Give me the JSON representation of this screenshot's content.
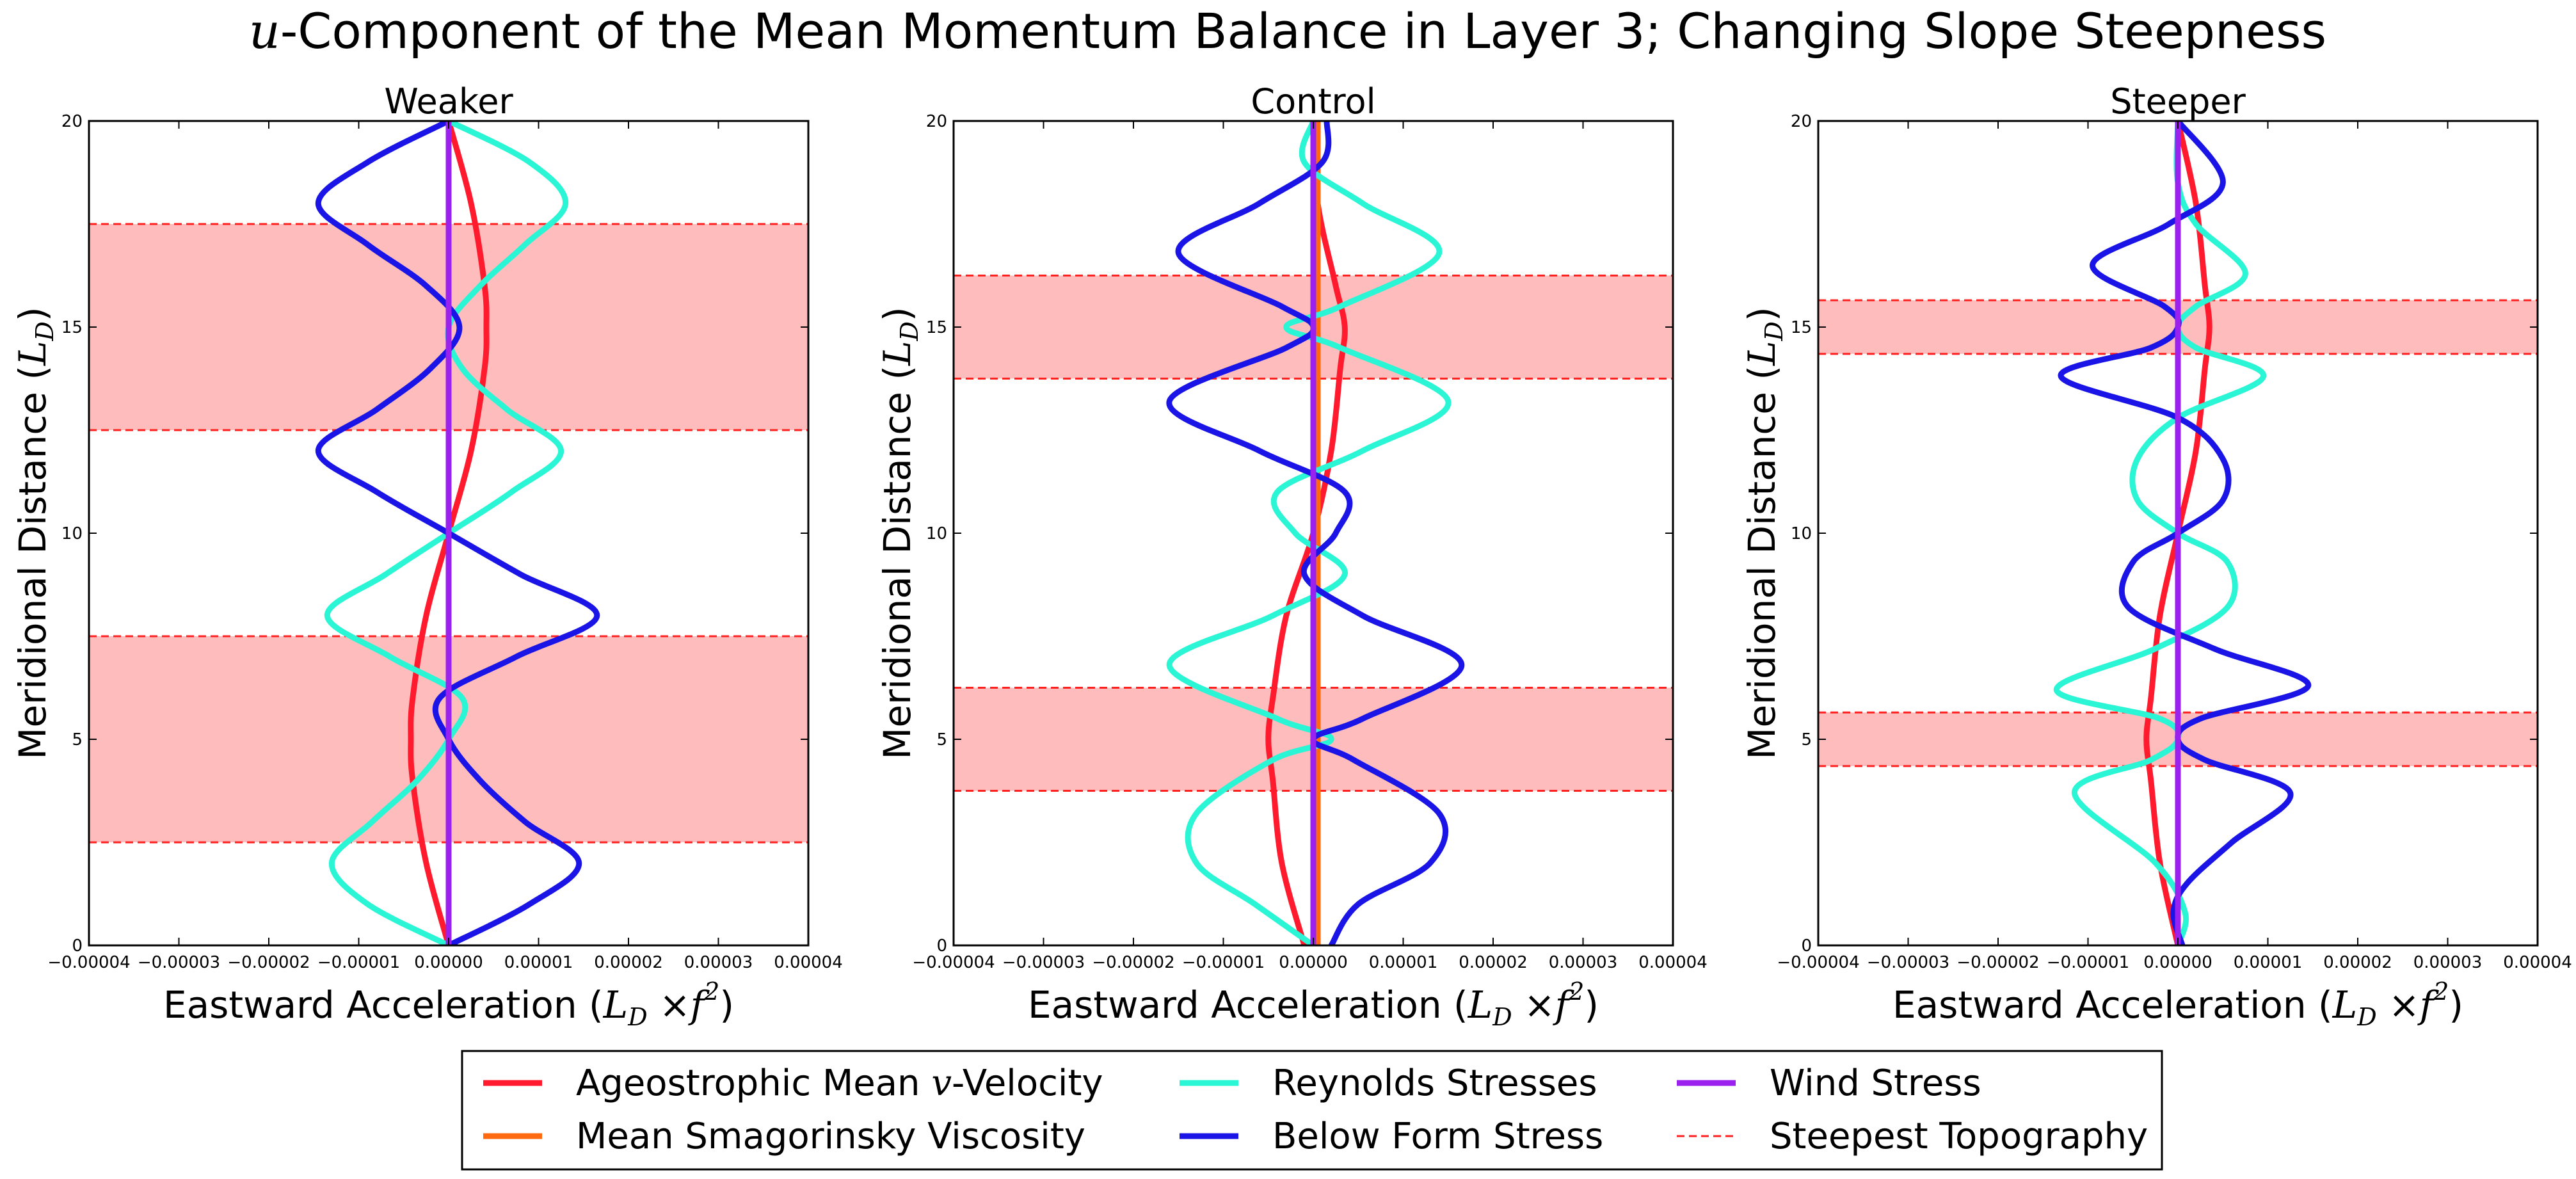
{
  "figure": {
    "title_math": "u",
    "title_rest": "-Component of the Mean Momentum Balance in Layer 3; Changing Slope Steepness",
    "xlabel_text": "Eastward Acceleration (",
    "xlabel_math": "L",
    "xlabel_sub": "D",
    "xlabel_times": " ×",
    "xlabel_f": "f",
    "xlabel_sup": "2",
    "xlabel_close": ")",
    "ylabel_text": "Meridional Distance (",
    "ylabel_math": "L",
    "ylabel_sub": "D",
    "ylabel_close": ")"
  },
  "legend": {
    "placement": "lower-center",
    "items": [
      {
        "key": "ageo",
        "label_pre": "Ageostrophic Mean ",
        "label_math": "v",
        "label_post": "-Velocity",
        "color": "#ff1a2e",
        "style": "solid"
      },
      {
        "key": "smag",
        "label_pre": "Mean Smagorinsky Viscosity",
        "label_math": "",
        "label_post": "",
        "color": "#ff6a10",
        "style": "solid"
      },
      {
        "key": "reyn",
        "label_pre": "Reynolds Stresses",
        "label_math": "",
        "label_post": "",
        "color": "#2af5d5",
        "style": "solid"
      },
      {
        "key": "form",
        "label_pre": "Below Form Stress",
        "label_math": "",
        "label_post": "",
        "color": "#1a14e6",
        "style": "solid"
      },
      {
        "key": "wind",
        "label_pre": "Wind Stress",
        "label_math": "",
        "label_post": "",
        "color": "#9b22ee",
        "style": "solid"
      },
      {
        "key": "topo",
        "label_pre": "Steepest Topography",
        "label_math": "",
        "label_post": "",
        "color": "#ff2020",
        "style": "dashed"
      }
    ]
  },
  "chart_data": [
    {
      "type": "line",
      "title": "Weaker",
      "xlim": [
        -4e-05,
        4e-05
      ],
      "ylim": [
        0,
        20
      ],
      "xticks": [
        "−0.00004",
        "−0.00003",
        "−0.00002",
        "−0.00001",
        "0.00000",
        "0.00001",
        "0.00002",
        "0.00003",
        "0.00004"
      ],
      "yticks": [
        "0",
        "5",
        "10",
        "15",
        "20"
      ],
      "shaded_bands": [
        [
          2.5,
          7.5
        ],
        [
          12.5,
          17.5
        ]
      ],
      "series": [
        {
          "key": "ageo",
          "y": [
            0,
            2,
            4,
            5,
            6,
            8,
            10,
            12,
            14,
            15,
            16,
            18,
            20
          ],
          "x": [
            0,
            -2.5e-06,
            -4e-06,
            -4.2e-06,
            -4e-06,
            -2.5e-06,
            0,
            2.5e-06,
            4e-06,
            4.2e-06,
            4e-06,
            2.5e-06,
            0
          ]
        },
        {
          "key": "smag",
          "y": [
            0,
            20
          ],
          "x": [
            0,
            0
          ]
        },
        {
          "key": "reyn",
          "y": [
            0,
            1,
            2,
            3,
            4,
            5,
            6,
            7,
            8,
            9,
            10,
            11,
            12,
            13,
            14,
            15,
            16,
            17,
            18,
            19,
            20
          ],
          "x": [
            0,
            -9e-06,
            -1.3e-05,
            -8.5e-06,
            -3.5e-06,
            0,
            1.5e-06,
            -6.5e-06,
            -1.35e-05,
            -7e-06,
            0,
            7e-06,
            1.25e-05,
            6.5e-06,
            1.5e-06,
            0,
            3.5e-06,
            8.5e-06,
            1.3e-05,
            9e-06,
            0
          ]
        },
        {
          "key": "form",
          "y": [
            0,
            1,
            2,
            3,
            4,
            5,
            6,
            7,
            8,
            9,
            10,
            11,
            12,
            13,
            14,
            15,
            16,
            17,
            18,
            19,
            20
          ],
          "x": [
            0,
            9e-06,
            1.45e-05,
            8.5e-06,
            3.5e-06,
            0,
            -1e-06,
            7.5e-06,
            1.65e-05,
            8e-06,
            0,
            -8e-06,
            -1.45e-05,
            -8e-06,
            -2e-06,
            1.2e-06,
            -2.5e-06,
            -9e-06,
            -1.45e-05,
            -9e-06,
            0
          ]
        },
        {
          "key": "wind",
          "y": [
            0,
            20
          ],
          "x": [
            0,
            0
          ]
        }
      ]
    },
    {
      "type": "line",
      "title": "Control",
      "xlim": [
        -4e-05,
        4e-05
      ],
      "ylim": [
        0,
        20
      ],
      "xticks": [
        "−0.00004",
        "−0.00003",
        "−0.00002",
        "−0.00001",
        "0.00000",
        "0.00001",
        "0.00002",
        "0.00003",
        "0.00004"
      ],
      "yticks": [
        "0",
        "5",
        "10",
        "15",
        "20"
      ],
      "shaded_bands": [
        [
          3.75,
          6.25
        ],
        [
          13.75,
          16.25
        ]
      ],
      "series": [
        {
          "key": "ageo",
          "y": [
            0,
            2,
            4,
            5,
            6,
            8,
            10,
            12,
            14,
            15,
            16,
            18,
            20
          ],
          "x": [
            -1e-06,
            -3.5e-06,
            -4.5e-06,
            -5e-06,
            -4.5e-06,
            -3e-06,
            0,
            2e-06,
            3e-06,
            3.5e-06,
            2.5e-06,
            5e-07,
            0
          ]
        },
        {
          "key": "smag",
          "y": [
            0,
            20
          ],
          "x": [
            5e-07,
            5e-07
          ]
        },
        {
          "key": "reyn",
          "y": [
            0,
            1,
            2,
            3.2,
            4.5,
            5,
            5.5,
            6.8,
            8,
            9,
            10,
            11,
            12,
            13.2,
            14.5,
            15,
            15.5,
            16.8,
            18,
            19,
            20
          ],
          "x": [
            0,
            -6.5e-06,
            -1.3e-05,
            -1.3e-05,
            -4.5e-06,
            2e-06,
            -4e-06,
            -1.6e-05,
            -4.5e-06,
            3.5e-06,
            -2e-06,
            -4e-06,
            5.5e-06,
            1.5e-05,
            3e-06,
            -3e-06,
            3e-06,
            1.4e-05,
            5.5e-06,
            -1e-06,
            0
          ]
        },
        {
          "key": "form",
          "y": [
            0,
            1,
            2,
            3.2,
            4.5,
            5,
            5.5,
            6.8,
            8,
            9,
            10,
            11,
            12,
            13.2,
            14.5,
            15,
            15.5,
            16.8,
            18,
            19,
            20
          ],
          "x": [
            2e-06,
            5e-06,
            1.3e-05,
            1.4e-05,
            4.5e-06,
            0,
            5.5e-06,
            1.65e-05,
            5.5e-06,
            -1e-06,
            2.5e-06,
            3.5e-06,
            -6e-06,
            -1.6e-05,
            -3e-06,
            0,
            -3.5e-06,
            -1.5e-05,
            -6e-06,
            1e-06,
            1.5e-06
          ]
        },
        {
          "key": "wind",
          "y": [
            0,
            20
          ],
          "x": [
            0,
            0
          ]
        }
      ]
    },
    {
      "type": "line",
      "title": "Steeper",
      "xlim": [
        -4e-05,
        4e-05
      ],
      "ylim": [
        0,
        20
      ],
      "xticks": [
        "−0.00004",
        "−0.00003",
        "−0.00002",
        "−0.00001",
        "0.00000",
        "0.00001",
        "0.00002",
        "0.00003",
        "0.00004"
      ],
      "yticks": [
        "0",
        "5",
        "10",
        "15",
        "20"
      ],
      "shaded_bands": [
        [
          4.35,
          5.65
        ],
        [
          14.35,
          15.65
        ]
      ],
      "series": [
        {
          "key": "ageo",
          "y": [
            0,
            2,
            4,
            5,
            6,
            8,
            10,
            12,
            14,
            15,
            16,
            18,
            20
          ],
          "x": [
            0,
            -2e-06,
            -3e-06,
            -3.5e-06,
            -3e-06,
            -2e-06,
            0,
            2e-06,
            3e-06,
            3.5e-06,
            3e-06,
            2e-06,
            0
          ]
        },
        {
          "key": "smag",
          "y": [
            0,
            20
          ],
          "x": [
            0,
            0
          ]
        },
        {
          "key": "reyn",
          "y": [
            0,
            0.8,
            2,
            3.7,
            4.5,
            5,
            5.5,
            6.2,
            7.2,
            8.2,
            9.3,
            10,
            10.8,
            11.8,
            12.8,
            13.8,
            14.5,
            15,
            15.5,
            16.3,
            17.5,
            18.5,
            20
          ],
          "x": [
            0,
            8e-07,
            -2.5e-06,
            -1.15e-05,
            -3e-06,
            0,
            -2e-06,
            -1.35e-05,
            -2.5e-06,
            5.5e-06,
            5.5e-06,
            0,
            -4.5e-06,
            -4.5e-06,
            0,
            9.5e-06,
            2e-06,
            0,
            2e-06,
            7.5e-06,
            2e-06,
            0,
            0
          ]
        },
        {
          "key": "form",
          "y": [
            0,
            0.8,
            1.5,
            2.5,
            3.7,
            4.5,
            5,
            5.5,
            6.3,
            7.2,
            8.2,
            9.3,
            10,
            10.8,
            11.8,
            12.8,
            13.8,
            14.5,
            15,
            15.5,
            16.5,
            17.5,
            18.5,
            20
          ],
          "x": [
            5e-07,
            -5e-07,
            1e-06,
            6e-06,
            1.25e-05,
            3e-06,
            0,
            2.5e-06,
            1.45e-05,
            4e-06,
            -5.5e-06,
            -5e-06,
            0,
            5e-06,
            5e-06,
            0,
            -1.3e-05,
            -3e-06,
            0,
            -1.5e-06,
            -9.5e-06,
            -1e-06,
            5e-06,
            0
          ]
        },
        {
          "key": "wind",
          "y": [
            0,
            20
          ],
          "x": [
            0,
            0
          ]
        }
      ]
    }
  ]
}
